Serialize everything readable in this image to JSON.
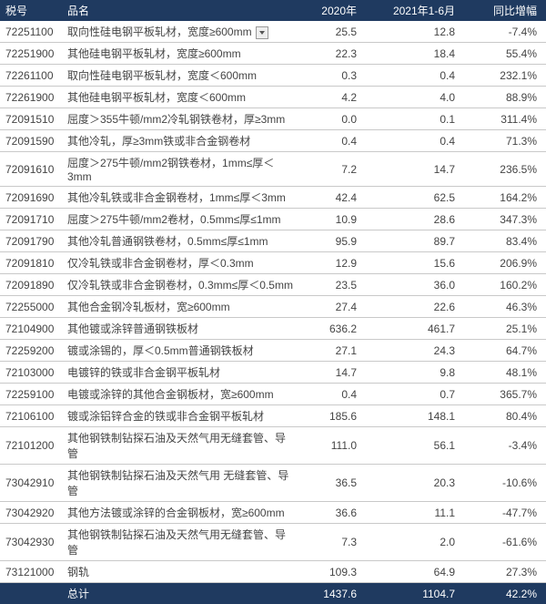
{
  "colors": {
    "header_bg": "#1f3a60",
    "header_fg": "#ffffff",
    "row_border": "#c9c9c9",
    "cell_fg": "#444444"
  },
  "columns": [
    "税号",
    "品名",
    "2020年",
    "2021年1-6月",
    "同比增幅"
  ],
  "rows": [
    {
      "code": "72251100",
      "name": "取向性硅电钢平板轧材，宽度≥600mm",
      "y2020": "25.5",
      "h1_2021": "12.8",
      "yoy": "-7.4%",
      "dropdown": true
    },
    {
      "code": "72251900",
      "name": "其他硅电钢平板轧材，宽度≥600mm",
      "y2020": "22.3",
      "h1_2021": "18.4",
      "yoy": "55.4%"
    },
    {
      "code": "72261100",
      "name": "取向性硅电钢平板轧材，宽度＜600mm",
      "y2020": "0.3",
      "h1_2021": "0.4",
      "yoy": "232.1%"
    },
    {
      "code": "72261900",
      "name": "其他硅电钢平板轧材，宽度＜600mm",
      "y2020": "4.2",
      "h1_2021": "4.0",
      "yoy": "88.9%"
    },
    {
      "code": "72091510",
      "name": "屈度＞355牛顿/mm2冷轧钢铁卷材，厚≥3mm",
      "y2020": "0.0",
      "h1_2021": "0.1",
      "yoy": "311.4%"
    },
    {
      "code": "72091590",
      "name": "其他冷轧，厚≥3mm铁或非合金钢卷材",
      "y2020": "0.4",
      "h1_2021": "0.4",
      "yoy": "71.3%"
    },
    {
      "code": "72091610",
      "name": "屈度＞275牛顿/mm2钢铁卷材，1mm≤厚＜3mm",
      "y2020": "7.2",
      "h1_2021": "14.7",
      "yoy": "236.5%"
    },
    {
      "code": "72091690",
      "name": "其他冷轧铁或非合金钢卷材，1mm≤厚＜3mm",
      "y2020": "42.4",
      "h1_2021": "62.5",
      "yoy": "164.2%"
    },
    {
      "code": "72091710",
      "name": "屈度＞275牛顿/mm2卷材，0.5mm≤厚≤1mm",
      "y2020": "10.9",
      "h1_2021": "28.6",
      "yoy": "347.3%"
    },
    {
      "code": "72091790",
      "name": "其他冷轧普通钢铁卷材，0.5mm≤厚≤1mm",
      "y2020": "95.9",
      "h1_2021": "89.7",
      "yoy": "83.4%"
    },
    {
      "code": "72091810",
      "name": "仅冷轧铁或非合金钢卷材，厚＜0.3mm",
      "y2020": "12.9",
      "h1_2021": "15.6",
      "yoy": "206.9%"
    },
    {
      "code": "72091890",
      "name": "仅冷轧铁或非合金钢卷材，0.3mm≤厚＜0.5mm",
      "y2020": "23.5",
      "h1_2021": "36.0",
      "yoy": "160.2%"
    },
    {
      "code": "72255000",
      "name": "其他合金钢冷轧板材，宽≥600mm",
      "y2020": "27.4",
      "h1_2021": "22.6",
      "yoy": "46.3%"
    },
    {
      "code": "72104900",
      "name": "其他镀或涂锌普通钢铁板材",
      "y2020": "636.2",
      "h1_2021": "461.7",
      "yoy": "25.1%"
    },
    {
      "code": "72259200",
      "name": "镀或涂锡的，厚＜0.5mm普通钢铁板材",
      "y2020": "27.1",
      "h1_2021": "24.3",
      "yoy": "64.7%"
    },
    {
      "code": "72103000",
      "name": "电镀锌的铁或非合金钢平板轧材",
      "y2020": "14.7",
      "h1_2021": "9.8",
      "yoy": "48.1%"
    },
    {
      "code": "72259100",
      "name": "电镀或涂锌的其他合金钢板材，宽≥600mm",
      "y2020": "0.4",
      "h1_2021": "0.7",
      "yoy": "365.7%"
    },
    {
      "code": "72106100",
      "name": "镀或涂铝锌合金的铁或非合金钢平板轧材",
      "y2020": "185.6",
      "h1_2021": "148.1",
      "yoy": "80.4%"
    },
    {
      "code": "72101200",
      "name": "其他钢铁制钻探石油及天然气用无缝套管、导管",
      "y2020": "111.0",
      "h1_2021": "56.1",
      "yoy": "-3.4%"
    },
    {
      "code": "73042910",
      "name": "其他钢铁制钻探石油及天然气用 无缝套管、导管",
      "y2020": "36.5",
      "h1_2021": "20.3",
      "yoy": "-10.6%"
    },
    {
      "code": "73042920",
      "name": "其他方法镀或涂锌的合金钢板材，宽≥600mm",
      "y2020": "36.6",
      "h1_2021": "11.1",
      "yoy": "-47.7%"
    },
    {
      "code": "73042930",
      "name": "其他钢铁制钻探石油及天然气用无缝套管、导管",
      "y2020": "7.3",
      "h1_2021": "2.0",
      "yoy": "-61.6%"
    },
    {
      "code": "73121000",
      "name": "钢轨",
      "y2020": "109.3",
      "h1_2021": "64.9",
      "yoy": "27.3%"
    }
  ],
  "total": {
    "label": "总计",
    "y2020": "1437.6",
    "h1_2021": "1104.7",
    "yoy": "42.2%"
  }
}
